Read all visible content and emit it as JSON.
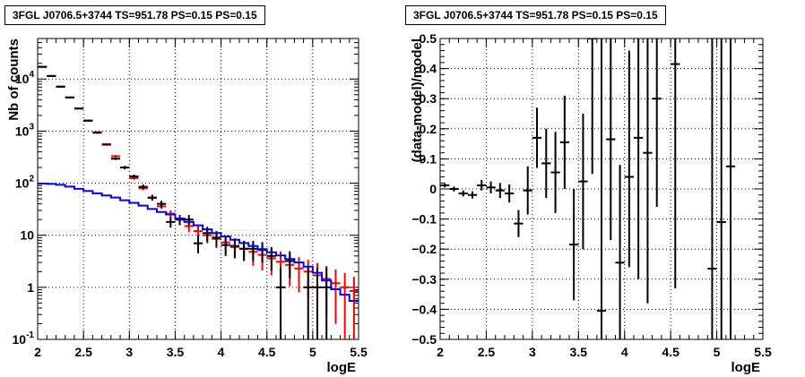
{
  "chart_data": [
    {
      "type": "scatter",
      "title": "3FGL J0706.5+3744 TS=951.78 PS=0.15 PS=0.15",
      "xlabel": "logE",
      "ylabel": "Nb of counts",
      "xlim": [
        2,
        5.5
      ],
      "ylim": [
        0.1,
        60000
      ],
      "yscale": "log",
      "grid": true,
      "x_ticks": [
        "2",
        "2.5",
        "3",
        "3.5",
        "4",
        "4.5",
        "5",
        "5.5"
      ],
      "y_ticks": [
        {
          "value": 0.1,
          "base": "10",
          "exp": "-1"
        },
        {
          "value": 1,
          "base": "1",
          "exp": ""
        },
        {
          "value": 10,
          "base": "10",
          "exp": ""
        },
        {
          "value": 100,
          "base": "10",
          "exp": "2"
        },
        {
          "value": 1000,
          "base": "10",
          "exp": "3"
        },
        {
          "value": 10000,
          "base": "10",
          "exp": "4"
        }
      ],
      "series": [
        {
          "kind": "errorbar",
          "color": "#ff0000",
          "x": [
            2.05,
            2.15,
            2.25,
            2.35,
            2.45,
            2.55,
            2.65,
            2.75,
            2.85,
            2.95,
            3.05,
            3.15,
            3.25,
            3.35,
            3.45,
            3.55,
            3.65,
            3.75,
            3.85,
            3.95,
            4.05,
            4.15,
            4.25,
            4.35,
            4.45,
            4.55,
            4.65,
            4.75,
            4.85,
            4.95,
            5.05,
            5.15,
            5.25,
            5.35,
            5.45
          ],
          "y": [
            17000,
            11500,
            7200,
            4400,
            2700,
            1600,
            950,
            560,
            330,
            200,
            125,
            80,
            52,
            36,
            26,
            20,
            15,
            12,
            10,
            8.5,
            7.3,
            6.3,
            5.5,
            4.8,
            4.2,
            3.6,
            3.1,
            2.7,
            2.3,
            2.0,
            1.7,
            1.45,
            1.2,
            1.0,
            0.85
          ],
          "ylo": [
            16800,
            11300,
            7050,
            4300,
            2620,
            1540,
            910,
            535,
            312,
            187,
            116,
            73,
            47,
            32,
            22,
            16,
            11.5,
            8.8,
            7,
            5.7,
            4.7,
            3.8,
            3.2,
            2.6,
            2.1,
            1.7,
            1.3,
            1.05,
            0.8,
            0.62,
            0.45,
            0.32,
            0.2,
            0.1,
            0.1
          ],
          "yhi": [
            17200,
            11700,
            7350,
            4500,
            2780,
            1660,
            990,
            585,
            348,
            213,
            134,
            87,
            57,
            40,
            30,
            24,
            18.5,
            15.2,
            13,
            11.3,
            9.9,
            8.8,
            7.8,
            7,
            6.3,
            5.5,
            4.9,
            4.35,
            3.8,
            3.38,
            2.95,
            2.58,
            2.2,
            1.9,
            1.6
          ]
        },
        {
          "kind": "errorbar",
          "color": "#000000",
          "x": [
            2.05,
            2.15,
            2.25,
            2.35,
            2.45,
            2.55,
            2.65,
            2.75,
            2.85,
            2.95,
            3.05,
            3.15,
            3.25,
            3.35,
            3.45,
            3.55,
            3.65,
            3.75,
            3.85,
            3.95,
            4.05,
            4.15,
            4.25,
            4.35,
            4.45,
            4.55,
            4.65,
            4.75,
            4.95,
            5.05,
            5.15
          ],
          "y": [
            17200,
            11400,
            7100,
            4450,
            2720,
            1580,
            930,
            550,
            295,
            200,
            135,
            85,
            53,
            40,
            18,
            20,
            20,
            7,
            11,
            9,
            6.5,
            6,
            5.5,
            5.5,
            5.2,
            4,
            1,
            3.2,
            1,
            1,
            1
          ],
          "ylo": [
            17000,
            11200,
            6950,
            4350,
            2650,
            1530,
            895,
            525,
            278,
            186,
            124,
            76,
            46,
            34,
            14,
            15.5,
            15.5,
            4.5,
            7.5,
            6,
            4,
            3.6,
            3.2,
            3.2,
            3,
            2.1,
            0.1,
            1.5,
            0.1,
            0.1,
            0.1
          ],
          "yhi": [
            17400,
            11600,
            7250,
            4550,
            2790,
            1630,
            965,
            575,
            312,
            214,
            146,
            94,
            60,
            46,
            22.5,
            24.5,
            24.5,
            9.7,
            14.5,
            12,
            9,
            8.4,
            7.8,
            7.8,
            7.4,
            5.9,
            2.4,
            4.9,
            2.4,
            2.4,
            2.4
          ]
        },
        {
          "kind": "step",
          "color": "#0000ff",
          "edges": [
            2.0,
            2.1,
            2.2,
            2.3,
            2.4,
            2.5,
            2.6,
            2.7,
            2.8,
            2.9,
            3.0,
            3.1,
            3.2,
            3.3,
            3.4,
            3.5,
            3.6,
            3.7,
            3.8,
            3.9,
            4.0,
            4.1,
            4.2,
            4.3,
            4.4,
            4.5,
            4.6,
            4.7,
            4.8,
            4.9,
            5.0,
            5.1,
            5.2,
            5.3,
            5.4,
            5.5
          ],
          "values": [
            98,
            97,
            93,
            86,
            78,
            71,
            64,
            58,
            53,
            47,
            42,
            37,
            32,
            28,
            25,
            21,
            18,
            15.5,
            13,
            11,
            9.5,
            8.2,
            7.1,
            6.2,
            5.4,
            4.7,
            4.1,
            3.5,
            3.0,
            2.5,
            1.9,
            1.35,
            0.92,
            0.72,
            0.55
          ]
        }
      ]
    },
    {
      "type": "scatter",
      "title": "3FGL J0706.5+3744 TS=951.78 PS=0.15 PS=0.15",
      "xlabel": "logE",
      "ylabel": "(data-model)/model",
      "xlim": [
        2,
        5.5
      ],
      "ylim": [
        -0.5,
        0.5
      ],
      "grid": true,
      "x_ticks": [
        "2",
        "2.5",
        "3",
        "3.5",
        "4",
        "4.5",
        "5",
        "5.5"
      ],
      "y_ticks": [
        "−0.5",
        "−0.4",
        "−0.3",
        "−0.2",
        "−0.1",
        "0",
        "0.1",
        "0.2",
        "0.3",
        "0.4",
        "0.5"
      ],
      "y_tick_values": [
        -0.5,
        -0.4,
        -0.3,
        -0.2,
        -0.1,
        0,
        0.1,
        0.2,
        0.3,
        0.4,
        0.5
      ],
      "series": [
        {
          "kind": "errorbar",
          "color": "#000000",
          "x": [
            2.05,
            2.15,
            2.25,
            2.35,
            2.45,
            2.55,
            2.65,
            2.75,
            2.85,
            2.95,
            3.05,
            3.15,
            3.25,
            3.35,
            3.45,
            3.55,
            3.65,
            3.75,
            3.85,
            3.95,
            4.05,
            4.15,
            4.25,
            4.35,
            4.55,
            4.95,
            5.05,
            5.15
          ],
          "y": [
            0.012,
            0.0,
            -0.015,
            -0.02,
            0.012,
            0.005,
            -0.005,
            -0.015,
            -0.115,
            -0.005,
            0.17,
            0.085,
            0.055,
            0.155,
            -0.185,
            0.025,
            0.5,
            -0.405,
            0.165,
            -0.245,
            0.04,
            0.17,
            0.12,
            0.3,
            0.415,
            -0.265,
            -0.11,
            0.075
          ],
          "ylo": [
            0.005,
            -0.008,
            -0.025,
            -0.032,
            -0.005,
            -0.015,
            -0.03,
            -0.045,
            -0.16,
            -0.085,
            0.07,
            -0.03,
            -0.08,
            0.0,
            -0.37,
            -0.2,
            0.05,
            -0.5,
            -0.17,
            -0.5,
            -0.26,
            -0.3,
            -0.38,
            -0.06,
            -0.33,
            -0.5,
            -0.5,
            -0.5
          ],
          "yhi": [
            0.019,
            0.008,
            -0.005,
            -0.008,
            0.03,
            0.025,
            0.02,
            0.015,
            -0.07,
            0.075,
            0.27,
            0.2,
            0.19,
            0.31,
            0.0,
            0.25,
            0.5,
            0.5,
            0.5,
            0.08,
            0.46,
            0.5,
            0.5,
            0.5,
            0.5,
            0.5,
            0.5,
            0.5
          ]
        }
      ]
    }
  ]
}
